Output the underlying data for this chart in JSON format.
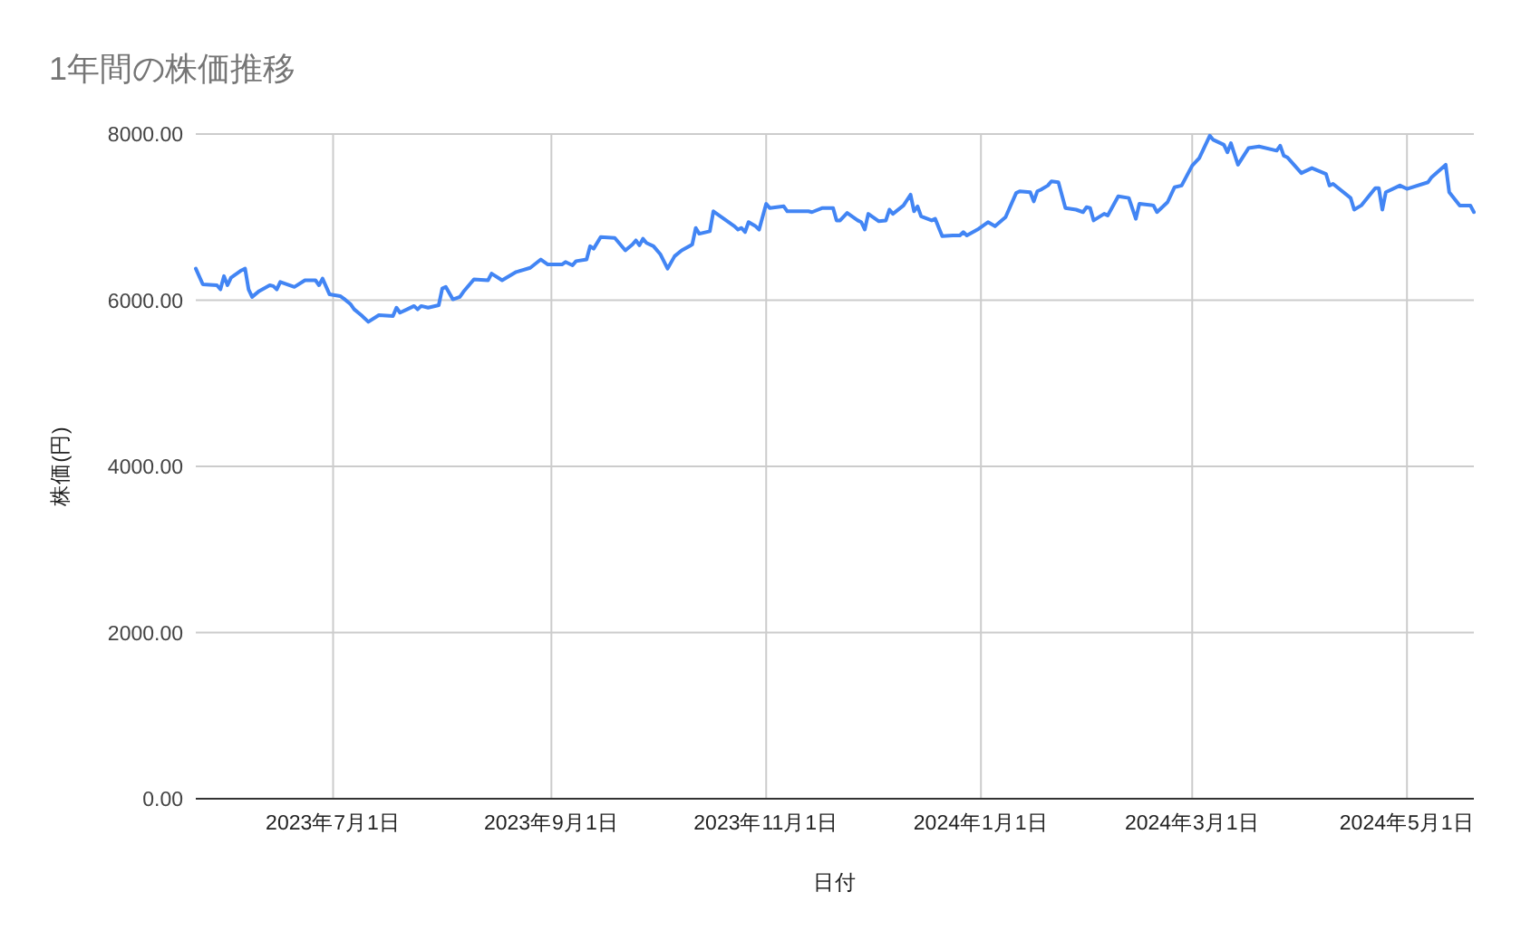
{
  "chart_data": {
    "type": "line",
    "title": "1年間の株価推移",
    "xlabel": "日付",
    "ylabel": "株価(円)",
    "x": [
      "2023-05-23",
      "2023-05-25",
      "2023-05-29",
      "2023-05-30",
      "2023-05-31",
      "2023-06-01",
      "2023-06-02",
      "2023-06-05",
      "2023-06-06",
      "2023-06-07",
      "2023-06-08",
      "2023-06-10",
      "2023-06-13",
      "2023-06-14",
      "2023-06-15",
      "2023-06-16",
      "2023-06-20",
      "2023-06-23",
      "2023-06-26",
      "2023-06-27",
      "2023-06-28",
      "2023-06-30",
      "2023-07-03",
      "2023-07-04",
      "2023-07-06",
      "2023-07-07",
      "2023-07-09",
      "2023-07-11",
      "2023-07-14",
      "2023-07-18",
      "2023-07-19",
      "2023-07-20",
      "2023-07-22",
      "2023-07-24",
      "2023-07-25",
      "2023-07-26",
      "2023-07-28",
      "2023-07-31",
      "2023-08-01",
      "2023-08-02",
      "2023-08-04",
      "2023-08-06",
      "2023-08-07",
      "2023-08-10",
      "2023-08-14",
      "2023-08-15",
      "2023-08-18",
      "2023-08-22",
      "2023-08-26",
      "2023-08-29",
      "2023-08-31",
      "2023-09-04",
      "2023-09-05",
      "2023-09-07",
      "2023-09-08",
      "2023-09-11",
      "2023-09-12",
      "2023-09-13",
      "2023-09-15",
      "2023-09-19",
      "2023-09-22",
      "2023-09-24",
      "2023-09-25",
      "2023-09-26",
      "2023-09-27",
      "2023-09-28",
      "2023-09-30",
      "2023-10-02",
      "2023-10-04",
      "2023-10-06",
      "2023-10-08",
      "2023-10-11",
      "2023-10-12",
      "2023-10-13",
      "2023-10-16",
      "2023-10-17",
      "2023-10-19",
      "2023-10-23",
      "2023-10-24",
      "2023-10-25",
      "2023-10-26",
      "2023-10-27",
      "2023-10-29",
      "2023-10-30",
      "2023-11-01",
      "2023-11-02",
      "2023-11-06",
      "2023-11-07",
      "2023-11-13",
      "2023-11-14",
      "2023-11-17",
      "2023-11-20",
      "2023-11-21",
      "2023-11-22",
      "2023-11-24",
      "2023-11-27",
      "2023-11-28",
      "2023-11-29",
      "2023-11-30",
      "2023-12-03",
      "2023-12-05",
      "2023-12-06",
      "2023-12-07",
      "2023-12-10",
      "2023-12-12",
      "2023-12-13",
      "2023-12-14",
      "2023-12-15",
      "2023-12-18",
      "2023-12-19",
      "2023-12-21",
      "2023-12-24",
      "2023-12-26",
      "2023-12-27",
      "2023-12-28",
      "2023-12-31",
      "2024-01-03",
      "2024-01-05",
      "2024-01-08",
      "2024-01-11",
      "2024-01-12",
      "2024-01-15",
      "2024-01-16",
      "2024-01-17",
      "2024-01-18",
      "2024-01-20",
      "2024-01-21",
      "2024-01-23",
      "2024-01-25",
      "2024-01-28",
      "2024-01-30",
      "2024-01-31",
      "2024-02-01",
      "2024-02-02",
      "2024-02-05",
      "2024-02-06",
      "2024-02-09",
      "2024-02-12",
      "2024-02-14",
      "2024-02-15",
      "2024-02-19",
      "2024-02-20",
      "2024-02-23",
      "2024-02-25",
      "2024-02-27",
      "2024-03-01",
      "2024-03-03",
      "2024-03-06",
      "2024-03-07",
      "2024-03-10",
      "2024-03-11",
      "2024-03-12",
      "2024-03-14",
      "2024-03-17",
      "2024-03-20",
      "2024-03-25",
      "2024-03-26",
      "2024-03-27",
      "2024-03-28",
      "2024-04-01",
      "2024-04-04",
      "2024-04-08",
      "2024-04-09",
      "2024-04-10",
      "2024-04-15",
      "2024-04-16",
      "2024-04-18",
      "2024-04-22",
      "2024-04-23",
      "2024-04-24",
      "2024-04-25",
      "2024-04-29",
      "2024-05-01",
      "2024-05-07",
      "2024-05-08",
      "2024-05-12",
      "2024-05-13",
      "2024-05-16",
      "2024-05-19",
      "2024-05-20"
    ],
    "series": [
      {
        "color": "#4285f4",
        "values": [
          6380,
          6190,
          6180,
          6130,
          6290,
          6180,
          6270,
          6360,
          6380,
          6130,
          6040,
          6110,
          6180,
          6170,
          6130,
          6220,
          6160,
          6240,
          6240,
          6180,
          6260,
          6070,
          6050,
          6020,
          5950,
          5890,
          5820,
          5740,
          5820,
          5810,
          5910,
          5850,
          5890,
          5930,
          5890,
          5930,
          5910,
          5940,
          6140,
          6160,
          6010,
          6040,
          6100,
          6250,
          6240,
          6320,
          6240,
          6340,
          6390,
          6490,
          6430,
          6430,
          6460,
          6420,
          6470,
          6490,
          6650,
          6620,
          6760,
          6750,
          6600,
          6670,
          6720,
          6660,
          6740,
          6690,
          6650,
          6550,
          6380,
          6530,
          6600,
          6670,
          6870,
          6800,
          6830,
          7070,
          7010,
          6890,
          6850,
          6870,
          6820,
          6940,
          6890,
          6850,
          7160,
          7110,
          7130,
          7070,
          7070,
          7060,
          7110,
          7110,
          6960,
          6960,
          7050,
          6960,
          6940,
          6850,
          7040,
          6950,
          6960,
          7090,
          7040,
          7140,
          7270,
          7070,
          7130,
          7010,
          6960,
          6980,
          6770,
          6780,
          6780,
          6820,
          6780,
          6850,
          6940,
          6890,
          7000,
          7290,
          7310,
          7300,
          7190,
          7310,
          7330,
          7380,
          7430,
          7420,
          7110,
          7090,
          7060,
          7120,
          7110,
          6960,
          7040,
          7020,
          7250,
          7230,
          6980,
          7160,
          7140,
          7060,
          7180,
          7360,
          7380,
          7620,
          7710,
          7980,
          7930,
          7870,
          7780,
          7890,
          7630,
          7830,
          7850,
          7800,
          7860,
          7740,
          7720,
          7530,
          7590,
          7520,
          7380,
          7400,
          7230,
          7090,
          7140,
          7350,
          7350,
          7090,
          7300,
          7380,
          7340,
          7420,
          7480,
          7630,
          7300,
          7140,
          7140,
          7060
        ]
      }
    ],
    "xlim": [
      "2023-05-23",
      "2024-05-20"
    ],
    "xticks": [
      {
        "value": "2023-07-01",
        "label": "2023年7月1日"
      },
      {
        "value": "2023-09-01",
        "label": "2023年9月1日"
      },
      {
        "value": "2023-11-01",
        "label": "2023年11月1日"
      },
      {
        "value": "2024-01-01",
        "label": "2024年1月1日"
      },
      {
        "value": "2024-03-01",
        "label": "2024年3月1日"
      },
      {
        "value": "2024-05-01",
        "label": "2024年5月1日"
      }
    ],
    "ylim": [
      0,
      8000
    ],
    "yticks": [
      {
        "value": 0,
        "label": "0.00"
      },
      {
        "value": 2000,
        "label": "2000.00"
      },
      {
        "value": 4000,
        "label": "4000.00"
      },
      {
        "value": 6000,
        "label": "6000.00"
      },
      {
        "value": 8000,
        "label": "8000.00"
      }
    ],
    "grid": true,
    "line_style": "solid"
  }
}
